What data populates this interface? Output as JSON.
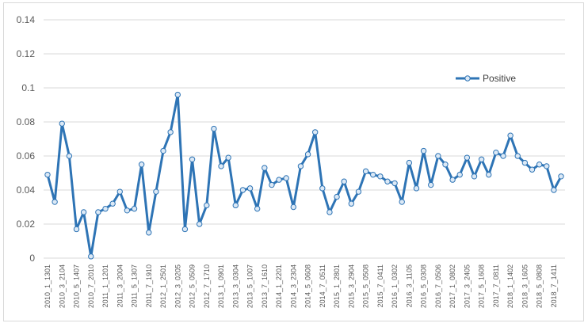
{
  "chart_data": {
    "type": "line",
    "title": "",
    "xlabel": "",
    "ylabel": "",
    "ylim": [
      0,
      0.14
    ],
    "yticks": [
      "0",
      "0.02",
      "0.04",
      "0.06",
      "0.08",
      "0.1",
      "0.12",
      "0.14"
    ],
    "grid": "horizontal",
    "legend_position": "right",
    "colors": {
      "line": "#2e74b5",
      "marker_fill": "#dce9f6",
      "grid": "#d9d9d9",
      "text": "#595959"
    },
    "x_tick_labels": [
      "2010_1_1301",
      "2010_3_2104",
      "2010_5_1407",
      "2010_7_2010",
      "2011_1_1201",
      "2011_3_2004",
      "2011_5_1307",
      "2011_7_1910",
      "2012_1_2501",
      "2012_3_0205",
      "2012_5_0509",
      "2012_7_1710",
      "2013_1_0901",
      "2013_3_0304",
      "2013_5_1007",
      "2013_7_1610",
      "2014_1_2201",
      "2014_3_2304",
      "2014_5_0608",
      "2014_7_0511",
      "2015_1_2801",
      "2015_3_2904",
      "2015_5_0508",
      "2015_7_0411",
      "2016_1_0302",
      "2016_3_1105",
      "2016_5_0308",
      "2016_7_0506",
      "2017_1_0802",
      "2017_3_2405",
      "2017_5_1608",
      "2017_7_0811",
      "2018_1_1402",
      "2018_3_1605",
      "2018_5_0808",
      "2018_7_1411"
    ],
    "series": [
      {
        "name": "Positive",
        "values": [
          0.049,
          0.033,
          0.079,
          0.06,
          0.017,
          0.027,
          0.001,
          0.027,
          0.029,
          0.032,
          0.039,
          0.028,
          0.029,
          0.055,
          0.015,
          0.039,
          0.063,
          0.074,
          0.096,
          0.017,
          0.058,
          0.02,
          0.031,
          0.076,
          0.054,
          0.059,
          0.031,
          0.04,
          0.041,
          0.029,
          0.053,
          0.043,
          0.046,
          0.047,
          0.03,
          0.054,
          0.061,
          0.074,
          0.041,
          0.027,
          0.036,
          0.045,
          0.032,
          0.039,
          0.051,
          0.049,
          0.048,
          0.045,
          0.044,
          0.033,
          0.056,
          0.041,
          0.063,
          0.043,
          0.06,
          0.055,
          0.046,
          0.049,
          0.059,
          0.048,
          0.058,
          0.049,
          0.062,
          0.06,
          0.072,
          0.06,
          0.056,
          0.052,
          0.055,
          0.054,
          0.04,
          0.048
        ]
      }
    ]
  }
}
